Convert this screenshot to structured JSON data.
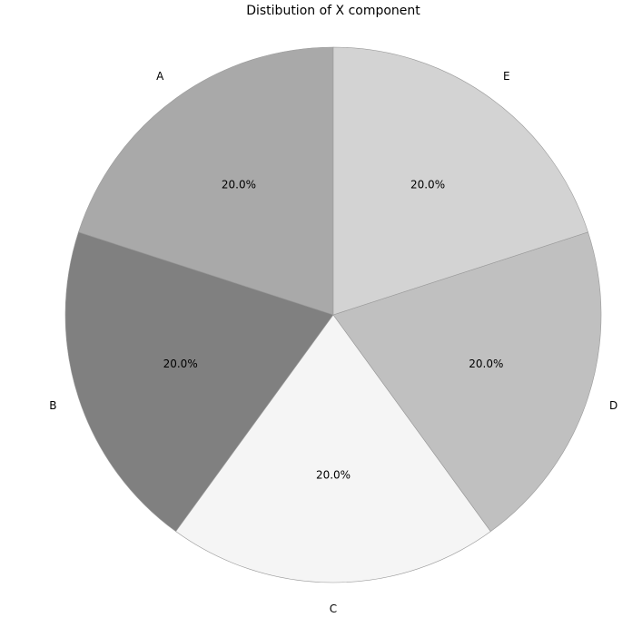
{
  "chart_data": {
    "type": "pie",
    "title": "Distibution of X component",
    "categories": [
      "A",
      "B",
      "C",
      "D",
      "E"
    ],
    "values": [
      20,
      20,
      20,
      20,
      20
    ],
    "percent_labels": [
      "20.0%",
      "20.0%",
      "20.0%",
      "20.0%",
      "20.0%"
    ],
    "colors": [
      "#a9a9a9",
      "#808080",
      "#f5f5f5",
      "#c0c0c0",
      "#d3d3d3"
    ],
    "start_angle_deg": 90,
    "direction": "counterclockwise",
    "edge_color": "#999999",
    "legend": "none"
  }
}
